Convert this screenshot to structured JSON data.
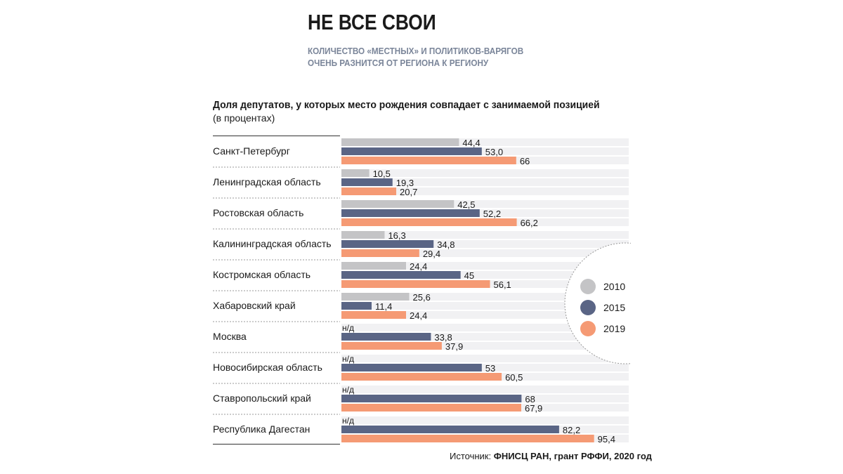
{
  "header": {
    "title": "НЕ ВСЕ СВОИ",
    "subtitle_line1": "КОЛИЧЕСТВО «МЕСТНЫХ» И ПОЛИТИКОВ-ВАРЯГОВ",
    "subtitle_line2": "ОЧЕНЬ РАЗНИТСЯ ОТ РЕГИОНА К РЕГИОНУ"
  },
  "source": {
    "label": "Источник:",
    "text": "ФНИСЦ РАН, грант РФФИ, 2020 год"
  },
  "colors": {
    "2010": "#c4c4c6",
    "2015": "#5a6585",
    "2019": "#f59a74",
    "track": "#f1f1f3"
  },
  "chart_data": {
    "type": "bar",
    "orientation": "horizontal",
    "title": "Доля депутатов, у которых место рождения совпадает с занимаемой позицией",
    "unit": "(в процентах)",
    "missing_label": "н/д",
    "categories": [
      "Санкт-Петербург",
      "Ленинградская область",
      "Ростовская область",
      "Калининградская область",
      "Костромская область",
      "Хабаровский край",
      "Москва",
      "Новосибирская область",
      "Ставропольский край",
      "Республика Дагестан"
    ],
    "series": [
      {
        "name": "2010",
        "values": [
          44.4,
          10.5,
          42.5,
          16.3,
          24.4,
          25.6,
          null,
          null,
          null,
          null
        ],
        "labels": [
          "44,4",
          "10,5",
          "42,5",
          "16,3",
          "24,4",
          "25,6",
          "н/д",
          "н/д",
          "н/д",
          "н/д"
        ]
      },
      {
        "name": "2015",
        "values": [
          53.0,
          19.3,
          52.2,
          34.8,
          45,
          11.4,
          33.8,
          53,
          68,
          82.2
        ],
        "labels": [
          "53,0",
          "19,3",
          "52,2",
          "34,8",
          "45",
          "11,4",
          "33,8",
          "53",
          "68",
          "82,2"
        ]
      },
      {
        "name": "2019",
        "values": [
          66,
          20.7,
          66.2,
          29.4,
          56.1,
          24.4,
          37.9,
          60.5,
          67.9,
          95.4
        ],
        "labels": [
          "66",
          "20,7",
          "66,2",
          "29,4",
          "56,1",
          "24,4",
          "37,9",
          "60,5",
          "67,9",
          "95,4"
        ]
      }
    ],
    "xlim": [
      0,
      108
    ],
    "legend": "right"
  }
}
